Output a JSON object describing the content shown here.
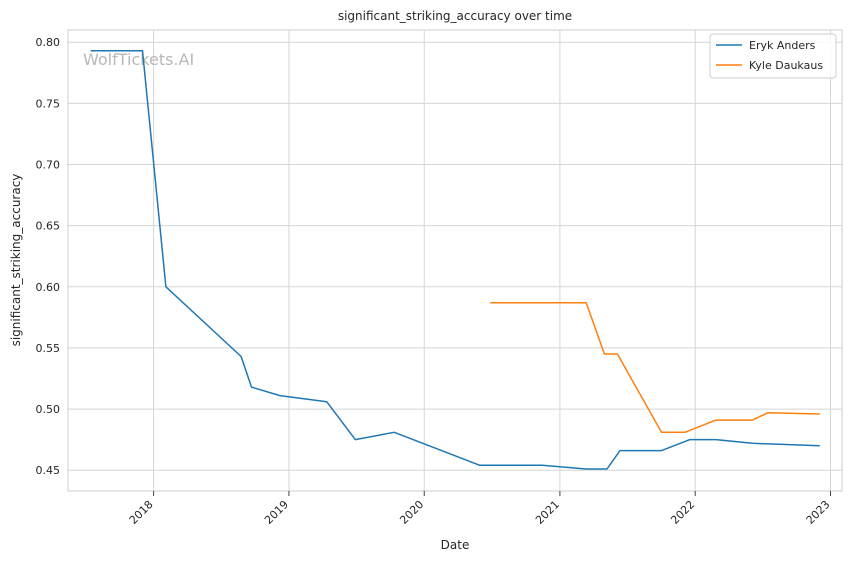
{
  "chart_data": {
    "type": "line",
    "title": "significant_striking_accuracy over time",
    "xlabel": "Date",
    "ylabel": "significant_striking_accuracy",
    "watermark": "WolfTickets.AI",
    "xlim": [
      "2017-05-15",
      "2023-02-01"
    ],
    "ylim": [
      0.433,
      0.81
    ],
    "x_ticks": [
      "2018",
      "2019",
      "2020",
      "2021",
      "2022",
      "2023"
    ],
    "y_ticks": [
      "0.45",
      "0.50",
      "0.55",
      "0.60",
      "0.65",
      "0.70",
      "0.75",
      "0.80"
    ],
    "grid": true,
    "legend_position": "top-right",
    "series": [
      {
        "name": "Eryk Anders",
        "color": "#1f77b4",
        "points": [
          {
            "x": "2017-07-15",
            "y": 0.793
          },
          {
            "x": "2017-12-02",
            "y": 0.793
          },
          {
            "x": "2018-02-03",
            "y": 0.6
          },
          {
            "x": "2018-08-25",
            "y": 0.543
          },
          {
            "x": "2018-09-22",
            "y": 0.518
          },
          {
            "x": "2018-12-08",
            "y": 0.511
          },
          {
            "x": "2019-04-13",
            "y": 0.506
          },
          {
            "x": "2019-06-29",
            "y": 0.475
          },
          {
            "x": "2019-10-12",
            "y": 0.481
          },
          {
            "x": "2020-05-30",
            "y": 0.454
          },
          {
            "x": "2020-11-14",
            "y": 0.454
          },
          {
            "x": "2021-03-13",
            "y": 0.451
          },
          {
            "x": "2021-05-08",
            "y": 0.451
          },
          {
            "x": "2021-06-12",
            "y": 0.466
          },
          {
            "x": "2021-10-02",
            "y": 0.466
          },
          {
            "x": "2021-12-18",
            "y": 0.475
          },
          {
            "x": "2022-02-26",
            "y": 0.475
          },
          {
            "x": "2022-06-04",
            "y": 0.472
          },
          {
            "x": "2022-12-03",
            "y": 0.47
          }
        ]
      },
      {
        "name": "Kyle Daukaus",
        "color": "#ff7f0e",
        "points": [
          {
            "x": "2020-06-27",
            "y": 0.587
          },
          {
            "x": "2021-03-13",
            "y": 0.587
          },
          {
            "x": "2021-05-01",
            "y": 0.545
          },
          {
            "x": "2021-06-05",
            "y": 0.545
          },
          {
            "x": "2021-10-02",
            "y": 0.481
          },
          {
            "x": "2021-12-04",
            "y": 0.481
          },
          {
            "x": "2022-02-26",
            "y": 0.491
          },
          {
            "x": "2022-06-04",
            "y": 0.491
          },
          {
            "x": "2022-07-16",
            "y": 0.497
          },
          {
            "x": "2022-12-03",
            "y": 0.496
          }
        ]
      }
    ]
  }
}
